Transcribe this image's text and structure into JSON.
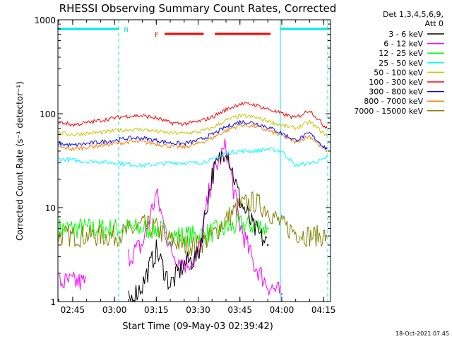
{
  "chart_data": {
    "type": "line",
    "title": "RHESSI Observing Summary Count Rates, Corrected",
    "xlabel": "Start Time (09-May-03 02:39:42)",
    "ylabel": "Corrected Count Rate (s⁻¹ detector⁻¹)",
    "yscale": "log",
    "xlim": [
      "02:39:42",
      "04:17:30"
    ],
    "ylim": [
      1,
      1000
    ],
    "x_ticks": [
      "02:45",
      "03:00",
      "03:15",
      "03:30",
      "03:45",
      "04:00",
      "04:15"
    ],
    "y_ticks": [
      "1",
      "10",
      "100",
      "1000"
    ],
    "legend_header": [
      "Det 1,3,4,5,6,9,",
      "Att 0"
    ],
    "legend_position": "right",
    "timestamp": "18-Oct-2021 07:45",
    "annotations": {
      "night_label": "N",
      "night_intervals": [
        [
          "02:39:42",
          "03:01:30"
        ],
        [
          "03:59:30",
          "04:16:30"
        ]
      ],
      "flag_label": "F",
      "flag_intervals": [
        [
          "03:18:00",
          "03:32:00"
        ],
        [
          "03:36:00",
          "03:56:00"
        ]
      ],
      "vlines": [
        "03:01:30",
        "03:59:30",
        "04:16:30"
      ]
    },
    "x": [
      "02:40",
      "02:45",
      "02:50",
      "02:55",
      "03:00",
      "03:05",
      "03:10",
      "03:15",
      "03:20",
      "03:25",
      "03:30",
      "03:35",
      "03:40",
      "03:45",
      "03:50",
      "03:55",
      "04:00",
      "04:05",
      "04:10",
      "04:15",
      "04:16"
    ],
    "series": [
      {
        "name": "3 - 6 keV",
        "color": "#000000",
        "values": [
          null,
          null,
          null,
          null,
          null,
          1.0,
          1.5,
          3.5,
          1.5,
          2.5,
          3.0,
          22.0,
          45.0,
          12.0,
          6.0,
          4.0,
          null,
          null,
          null,
          null,
          null
        ]
      },
      {
        "name": "6 - 12 keV",
        "color": "#ff00ff",
        "values": [
          1.6,
          1.6,
          1.6,
          null,
          null,
          3.0,
          4.0,
          14.0,
          3.5,
          2.5,
          3.0,
          22.0,
          45.0,
          6.5,
          2.5,
          1.5,
          1.2,
          null,
          null,
          null,
          null
        ]
      },
      {
        "name": "12 - 25 keV",
        "color": "#00ff00",
        "values": [
          6.0,
          6.0,
          6.0,
          6.0,
          6.0,
          6.0,
          6.0,
          6.0,
          5.0,
          5.0,
          5.0,
          5.5,
          6.0,
          6.5,
          6.5,
          6.0,
          null,
          null,
          null,
          null,
          null
        ]
      },
      {
        "name": "25 - 50 keV",
        "color": "#00ffff",
        "values": [
          33,
          32,
          31,
          31,
          30,
          29,
          28,
          29,
          30,
          30,
          30,
          32,
          38,
          40,
          40,
          42,
          40,
          28,
          30,
          32,
          35
        ]
      },
      {
        "name": "50 - 100 keV",
        "color": "#c8c800",
        "values": [
          62,
          60,
          62,
          63,
          66,
          68,
          68,
          65,
          62,
          62,
          64,
          70,
          85,
          95,
          92,
          84,
          75,
          70,
          82,
          62,
          60
        ]
      },
      {
        "name": "100 - 300 keV",
        "color": "#ff0000",
        "values": [
          82,
          76,
          80,
          85,
          90,
          95,
          95,
          90,
          80,
          78,
          82,
          92,
          110,
          128,
          125,
          112,
          100,
          90,
          110,
          75,
          72
        ]
      },
      {
        "name": "300 - 800 keV",
        "color": "#0000ff",
        "values": [
          48,
          46,
          48,
          50,
          52,
          55,
          55,
          52,
          49,
          48,
          52,
          60,
          72,
          82,
          80,
          72,
          62,
          52,
          62,
          45,
          43
        ]
      },
      {
        "name": "800 - 7000 keV",
        "color": "#ff8000",
        "values": [
          44,
          42,
          44,
          46,
          48,
          50,
          50,
          48,
          45,
          44,
          48,
          55,
          66,
          76,
          74,
          66,
          58,
          50,
          58,
          42,
          40
        ]
      },
      {
        "name": "7000 - 15000 keV",
        "color": "#808000",
        "values": [
          5.0,
          5.0,
          5.0,
          5.0,
          5.0,
          5.5,
          6.5,
          6.0,
          4.5,
          4.0,
          4.0,
          5.0,
          7.5,
          10.5,
          11.5,
          9.5,
          6.5,
          5.5,
          5.0,
          5.0,
          5.0
        ]
      }
    ]
  }
}
